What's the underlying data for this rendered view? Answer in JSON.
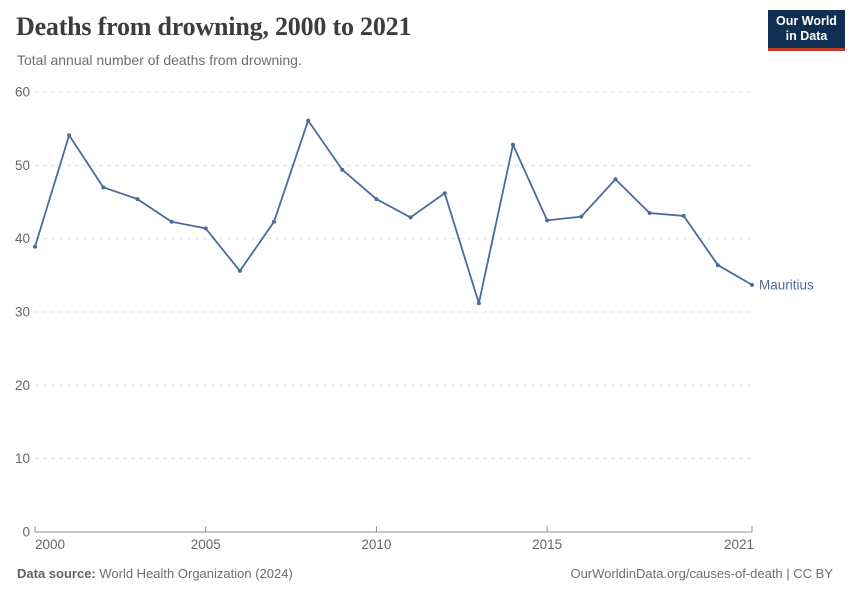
{
  "header": {
    "title": "Deaths from drowning, 2000 to 2021",
    "subtitle": "Total annual number of deaths from drowning.",
    "logo": {
      "line1": "Our World",
      "line2": "in Data"
    }
  },
  "chart_data": {
    "type": "line",
    "title": "Deaths from drowning, 2000 to 2021",
    "subtitle": "Total annual number of deaths from drowning.",
    "x": [
      2000,
      2001,
      2002,
      2003,
      2004,
      2005,
      2006,
      2007,
      2008,
      2009,
      2010,
      2011,
      2012,
      2013,
      2014,
      2015,
      2016,
      2017,
      2018,
      2019,
      2020,
      2021
    ],
    "series": [
      {
        "name": "Mauritius",
        "color": "#4c6a9c",
        "values": [
          38.9,
          54.1,
          47.0,
          45.4,
          42.3,
          41.4,
          35.6,
          42.3,
          56.1,
          49.4,
          45.4,
          42.9,
          46.2,
          31.2,
          52.8,
          42.5,
          43.0,
          48.1,
          43.5,
          43.1,
          36.4,
          33.7
        ]
      }
    ],
    "xlim": [
      2000,
      2021
    ],
    "ylim": [
      0,
      60
    ],
    "xticks": [
      2000,
      2005,
      2010,
      2015,
      2021
    ],
    "yticks": [
      0,
      10,
      20,
      30,
      40,
      50,
      60
    ],
    "grid": "horizontal-dashed",
    "legend_position": "end-of-line-label",
    "xlabel": "",
    "ylabel": ""
  },
  "footer": {
    "source_label": "Data source:",
    "source_value": " World Health Organization (2024)",
    "attribution": "OurWorldinData.org/causes-of-death | CC BY"
  },
  "colors": {
    "line": "#4c6a9c",
    "gridline": "#dcdcdc",
    "axis": "#8f8f8f",
    "tick_label": "#666666",
    "title": "#3d3d3d",
    "subtitle": "#6e6e6e",
    "logo_bg": "#0f2e52",
    "logo_accent": "#c0392b"
  }
}
